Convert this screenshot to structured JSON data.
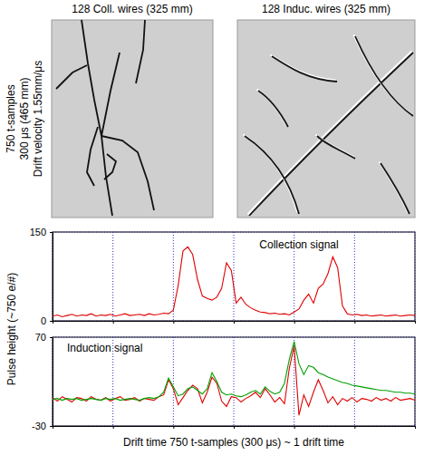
{
  "event_display": {
    "ylabel_lines": [
      "750 t-samples",
      "300 μs (465 mm)",
      "Drift velocity 1.55mm/μs"
    ],
    "panels": [
      {
        "title": "128 Coll. wires (325 mm)"
      },
      {
        "title": "128 Induc. wires (325 mm)"
      }
    ]
  },
  "figure": {
    "ylabel": "Pulse height (~750 e/#)",
    "xlabel": "Drift time 750 t-samples (300 μs) ~ 1 drift time"
  },
  "chart_data": [
    {
      "type": "line",
      "title": "Collection signal",
      "x": [
        0,
        10,
        20,
        30,
        40,
        50,
        60,
        70,
        80,
        90,
        100,
        110,
        120,
        130,
        140,
        150,
        160,
        170,
        180,
        190,
        200,
        210,
        220,
        230,
        240,
        250,
        260,
        270,
        280,
        290,
        300,
        310,
        320,
        330,
        340,
        350,
        360,
        370,
        380,
        390,
        400,
        410,
        420,
        430,
        440,
        450,
        460,
        470,
        480,
        490,
        500,
        510,
        520,
        530,
        540,
        550,
        560,
        570,
        580,
        590,
        600,
        610,
        620,
        630,
        640,
        650,
        660,
        670,
        680,
        690,
        700,
        710,
        720,
        730,
        740,
        750
      ],
      "series": [
        {
          "color": "#e00000",
          "values": [
            8,
            10,
            7,
            9,
            11,
            8,
            10,
            9,
            12,
            8,
            10,
            9,
            11,
            8,
            10,
            12,
            9,
            10,
            11,
            9,
            12,
            10,
            11,
            13,
            12,
            18,
            60,
            118,
            125,
            112,
            70,
            42,
            38,
            35,
            40,
            55,
            98,
            85,
            30,
            40,
            28,
            22,
            18,
            15,
            14,
            12,
            13,
            11,
            12,
            10,
            15,
            20,
            35,
            45,
            30,
            55,
            62,
            80,
            108,
            90,
            25,
            12,
            10,
            11,
            9,
            10,
            8,
            9,
            10,
            8,
            9,
            10,
            8,
            9,
            10,
            9
          ]
        }
      ],
      "xlim": [
        0,
        750
      ],
      "ylim": [
        0,
        150
      ],
      "xticks": [
        0,
        125,
        250,
        375,
        500,
        625,
        750
      ],
      "yticks": [
        0,
        150
      ],
      "grid": true,
      "tick_labels": "y"
    },
    {
      "type": "line",
      "title": "Induction signal",
      "x": [
        0,
        10,
        20,
        30,
        40,
        50,
        60,
        70,
        80,
        90,
        100,
        110,
        120,
        130,
        140,
        150,
        160,
        170,
        180,
        190,
        200,
        210,
        220,
        230,
        240,
        250,
        260,
        270,
        280,
        290,
        300,
        310,
        320,
        330,
        340,
        350,
        360,
        370,
        380,
        390,
        400,
        410,
        420,
        430,
        440,
        450,
        460,
        470,
        480,
        490,
        500,
        510,
        520,
        530,
        540,
        550,
        560,
        570,
        580,
        590,
        600,
        610,
        620,
        630,
        640,
        650,
        660,
        670,
        680,
        690,
        700,
        710,
        720,
        730,
        740,
        750
      ],
      "series": [
        {
          "color": "#e00000",
          "values": [
            2,
            -2,
            3,
            0,
            -3,
            2,
            1,
            -2,
            3,
            0,
            -1,
            2,
            -2,
            1,
            3,
            -1,
            0,
            2,
            -2,
            1,
            0,
            -1,
            3,
            5,
            22,
            12,
            -6,
            2,
            10,
            16,
            12,
            -4,
            8,
            25,
            18,
            -2,
            -8,
            3,
            2,
            -3,
            1,
            4,
            8,
            2,
            12,
            5,
            -3,
            2,
            -5,
            35,
            60,
            -18,
            5,
            -8,
            8,
            22,
            10,
            -4,
            3,
            -6,
            1,
            -2,
            2,
            -3,
            1,
            0,
            -2,
            2,
            -1,
            1,
            -2,
            2,
            -1,
            0,
            1,
            -1
          ]
        },
        {
          "color": "#00a000",
          "values": [
            0,
            1,
            -1,
            1,
            0,
            1,
            -1,
            0,
            1,
            0,
            -1,
            1,
            0,
            1,
            -1,
            0,
            1,
            0,
            -1,
            1,
            2,
            1,
            3,
            8,
            24,
            14,
            4,
            6,
            12,
            14,
            10,
            6,
            12,
            30,
            20,
            8,
            5,
            6,
            4,
            3,
            5,
            8,
            10,
            6,
            14,
            9,
            6,
            8,
            18,
            45,
            65,
            40,
            28,
            38,
            36,
            30,
            28,
            25,
            23,
            21,
            19,
            18,
            16,
            15,
            14,
            13,
            12,
            11,
            10,
            10,
            9,
            8,
            8,
            7,
            7,
            6
          ]
        }
      ],
      "xlim": [
        0,
        750
      ],
      "ylim": [
        -30,
        70
      ],
      "xticks": [
        0,
        125,
        250,
        375,
        500,
        625,
        750
      ],
      "yticks": [
        -30,
        70
      ],
      "grid": true,
      "tick_labels": "y"
    }
  ]
}
